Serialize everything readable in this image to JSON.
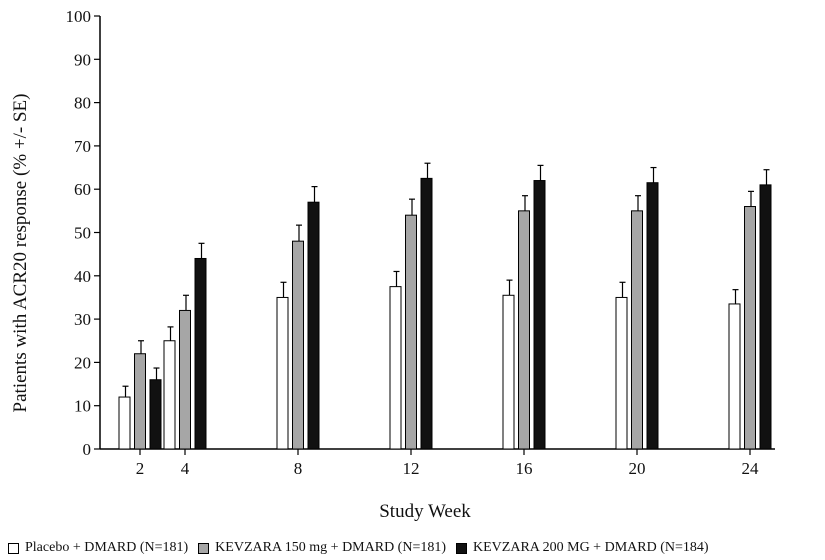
{
  "chart_data": {
    "type": "bar",
    "title": "",
    "xlabel": "Study Week",
    "ylabel": "Patients with ACR20 response (% +/- SE)",
    "ylim": [
      0,
      100
    ],
    "yticks": [
      0,
      10,
      20,
      30,
      40,
      50,
      60,
      70,
      80,
      90,
      100
    ],
    "categories": [
      "2",
      "4",
      "8",
      "12",
      "16",
      "20",
      "24"
    ],
    "grid": false,
    "legend_position": "bottom",
    "error_bars": "SE (upper only)",
    "series": [
      {
        "name": "Placebo + DMARD (N=181)",
        "color": "#ffffff",
        "values": [
          12,
          25,
          35,
          37.5,
          35.5,
          35,
          33.5
        ],
        "se": [
          2.5,
          3.2,
          3.5,
          3.5,
          3.5,
          3.5,
          3.3
        ]
      },
      {
        "name": "KEVZARA 150 mg + DMARD (N=181)",
        "color": "#a6a6a6",
        "values": [
          22,
          32,
          48,
          54,
          55,
          55,
          56
        ],
        "se": [
          3,
          3.5,
          3.7,
          3.7,
          3.5,
          3.5,
          3.5
        ]
      },
      {
        "name": "KEVZARA 200 MG + DMARD (N=184)",
        "color": "#111111",
        "values": [
          16,
          44,
          57,
          62.5,
          62,
          61.5,
          61
        ],
        "se": [
          2.7,
          3.5,
          3.6,
          3.5,
          3.5,
          3.5,
          3.5
        ]
      }
    ]
  }
}
